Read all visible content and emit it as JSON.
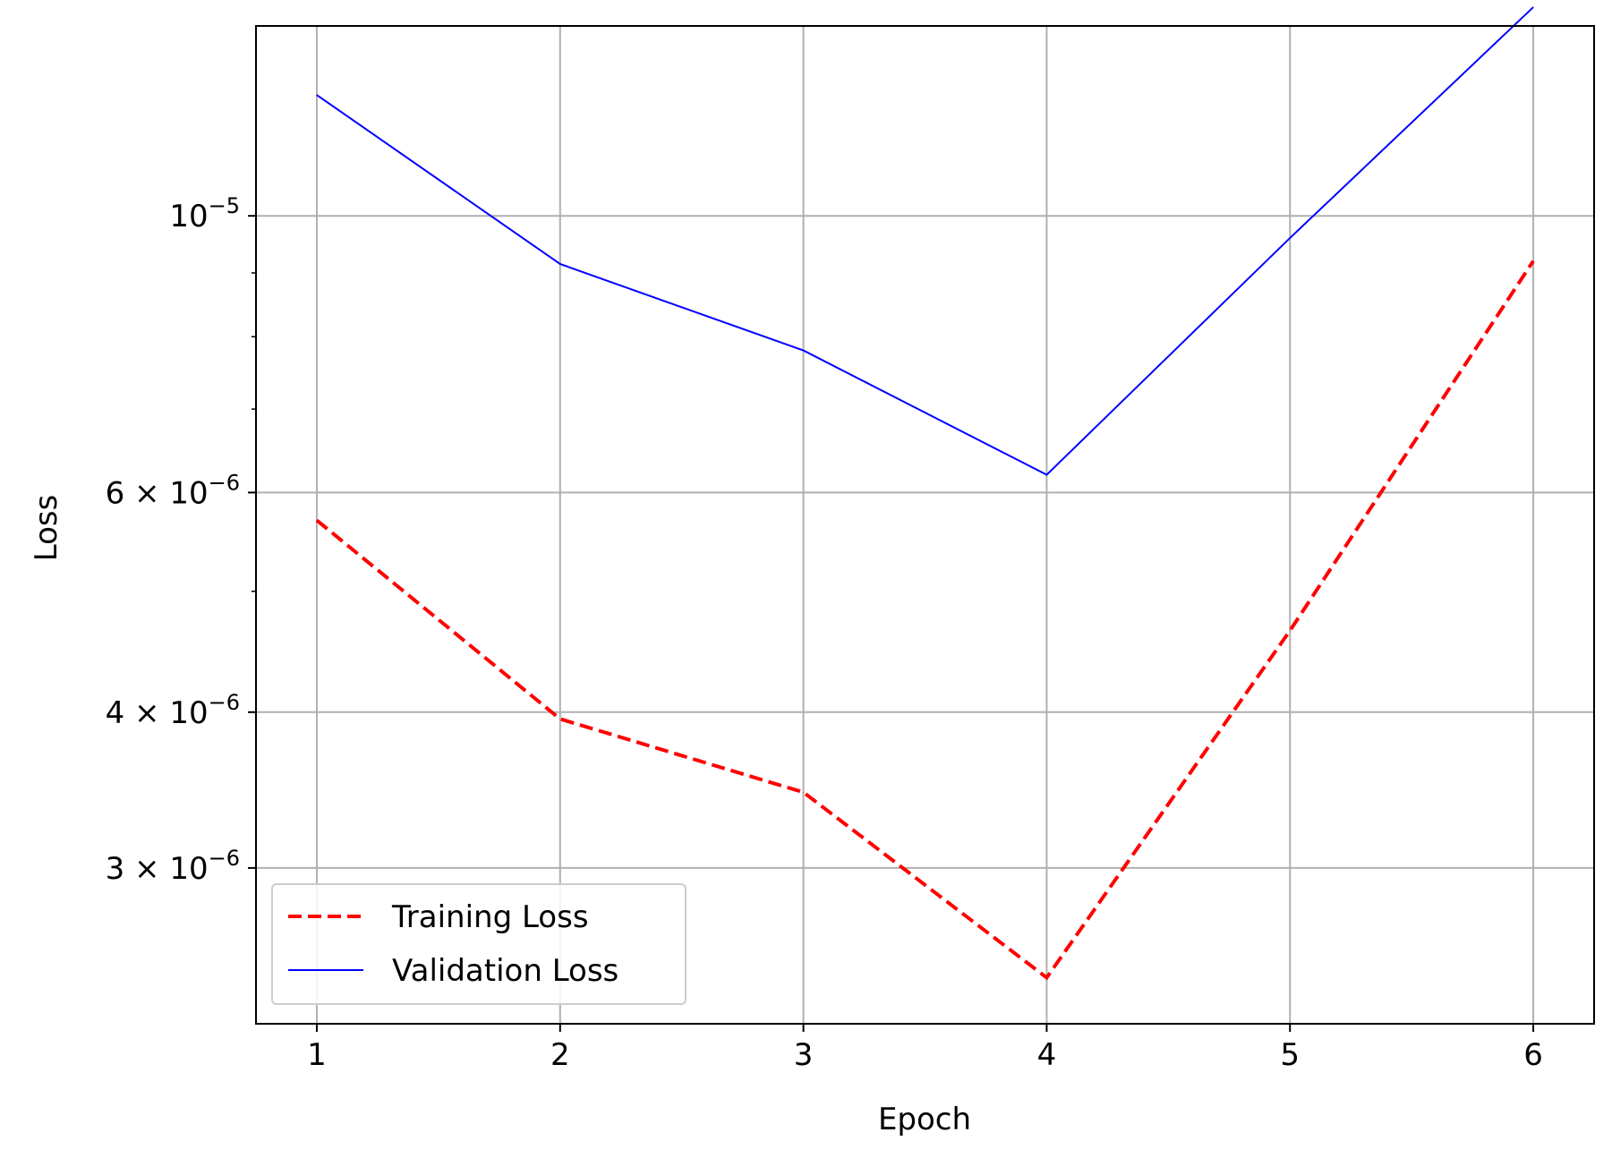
{
  "chart_data": {
    "type": "line",
    "title": "",
    "xlabel": "Epoch",
    "ylabel": "Loss",
    "x": [
      1,
      2,
      3,
      4,
      5,
      6
    ],
    "yscale": "log",
    "xlim": [
      0.75,
      6.25
    ],
    "ylim": [
      2.25e-06,
      1.42e-05
    ],
    "grid": true,
    "legend_position": "lower-left",
    "x_ticks": [
      {
        "value": 1,
        "label": "1"
      },
      {
        "value": 2,
        "label": "2"
      },
      {
        "value": 3,
        "label": "3"
      },
      {
        "value": 4,
        "label": "4"
      },
      {
        "value": 5,
        "label": "5"
      },
      {
        "value": 6,
        "label": "6"
      }
    ],
    "y_ticks": [
      {
        "value": 1e-05,
        "mantissa": "10",
        "exponent": "−5"
      },
      {
        "value": 6e-06,
        "mantissa": "6 × 10",
        "exponent": "−6"
      },
      {
        "value": 4e-06,
        "mantissa": "4 × 10",
        "exponent": "−6"
      },
      {
        "value": 3e-06,
        "mantissa": "3 × 10",
        "exponent": "−6"
      }
    ],
    "y_minor_ticks": [
      2e-06,
      5e-06,
      7e-06,
      8e-06,
      9e-06
    ],
    "series": [
      {
        "name": "Training Loss",
        "color": "#ff0000",
        "line_style": "dashed",
        "values": [
          5.7e-06,
          3.95e-06,
          3.45e-06,
          2.45e-06,
          4.65e-06,
          9.2e-06
        ]
      },
      {
        "name": "Validation Loss",
        "color": "#0000ff",
        "line_style": "solid",
        "values": [
          1.25e-05,
          9.15e-06,
          7.8e-06,
          6.2e-06,
          9.6e-06,
          1.47e-05
        ]
      }
    ]
  }
}
